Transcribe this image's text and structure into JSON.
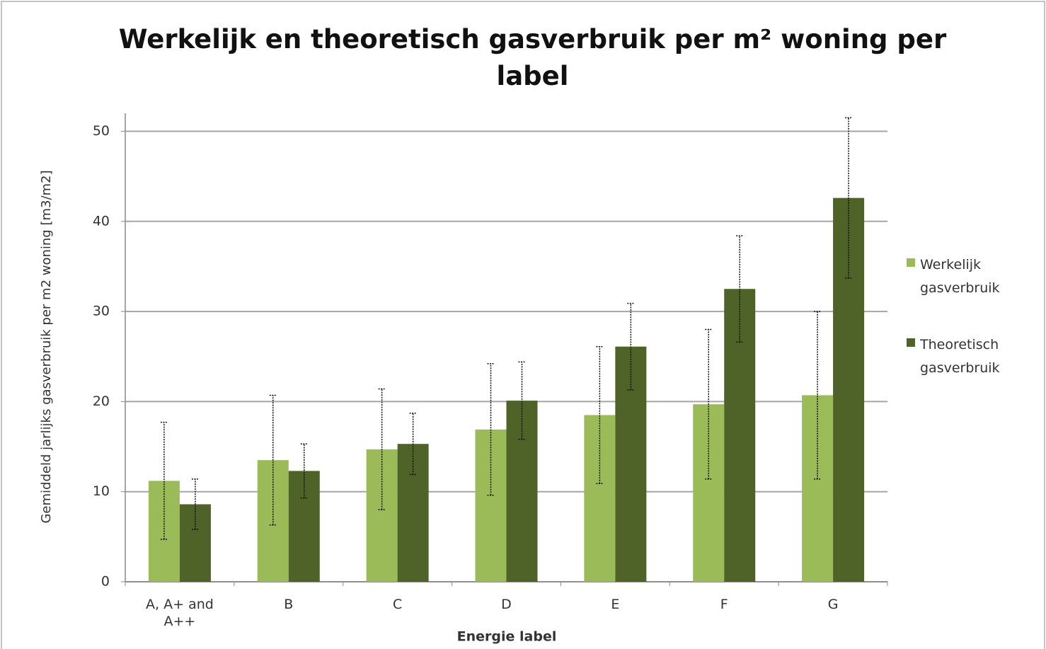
{
  "chart_data": {
    "type": "bar",
    "title": "Werkelijk en theoretisch gasverbruik per m² woning per label",
    "xlabel": "Energie label",
    "ylabel": "Gemiddeld jarlijks gasverbruik per m2 woning [m3/m2]",
    "categories": [
      "A, A+ and A++",
      "B",
      "C",
      "D",
      "E",
      "F",
      "G"
    ],
    "series": [
      {
        "name": "Werkelijk gasverbruik",
        "color": "#9bbb59",
        "values": [
          11.2,
          13.5,
          14.7,
          16.9,
          18.5,
          19.7,
          20.7
        ],
        "errors": [
          6.5,
          7.2,
          6.7,
          7.3,
          7.6,
          8.3,
          9.3
        ]
      },
      {
        "name": "Theoretisch gasverbruik",
        "color": "#4f6228",
        "values": [
          8.6,
          12.3,
          15.3,
          20.1,
          26.1,
          32.5,
          42.6
        ],
        "errors": [
          2.8,
          3.0,
          3.4,
          4.3,
          4.8,
          5.9,
          8.9
        ]
      }
    ],
    "ylim": [
      0,
      52
    ],
    "yticks": [
      0,
      10,
      20,
      30,
      40,
      50
    ],
    "grid": true,
    "legend": "right"
  }
}
